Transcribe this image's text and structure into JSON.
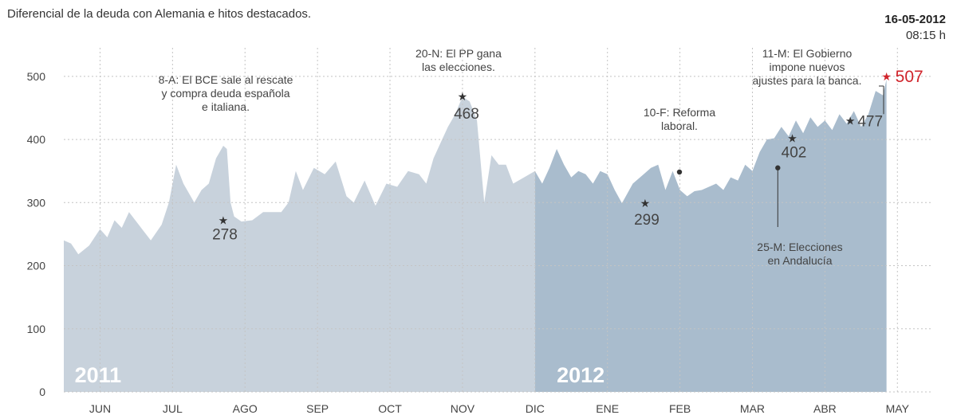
{
  "header": {
    "title": "Diferencial de la deuda con Alemania e hitos destacados.",
    "date": "16-05-2012",
    "time": "08:15 h"
  },
  "colors": {
    "area_2011": "#c8d2dc",
    "area_2012": "#a9bccd",
    "grid": "#c4c4c4",
    "text": "#444444",
    "highlight": "#d0242b",
    "marker": "#333333",
    "year_label": "#ffffff"
  },
  "chart_data": {
    "type": "area",
    "title": "Diferencial de la deuda con Alemania e hitos destacados.",
    "xlabel": "",
    "ylabel": "",
    "ylim": [
      0,
      520
    ],
    "yticks": [
      0,
      100,
      200,
      300,
      400,
      500
    ],
    "grid": true,
    "x_unit": "months since 1 June 2011",
    "months": [
      "JUN",
      "JUL",
      "AGO",
      "SEP",
      "OCT",
      "NOV",
      "DIC",
      "ENE",
      "FEB",
      "MAR",
      "ABR",
      "MAY"
    ],
    "year_labels": [
      {
        "text": "2011",
        "x": 0.15
      },
      {
        "text": "2012",
        "x": 6.8
      }
    ],
    "year_split": 6.5,
    "series": [
      {
        "name": "",
        "x": [
          0,
          0.1,
          0.2,
          0.35,
          0.5,
          0.6,
          0.7,
          0.8,
          0.9,
          1.0,
          1.1,
          1.2,
          1.35,
          1.45,
          1.55,
          1.65,
          1.8,
          1.9,
          2.0,
          2.1,
          2.2,
          2.25,
          2.3,
          2.35,
          2.45,
          2.6,
          2.75,
          2.9,
          3.0,
          3.1,
          3.2,
          3.3,
          3.45,
          3.6,
          3.75,
          3.9,
          4.0,
          4.15,
          4.3,
          4.45,
          4.6,
          4.75,
          4.9,
          5.0,
          5.1,
          5.2,
          5.3,
          5.4,
          5.5,
          5.6,
          5.7,
          5.8,
          5.9,
          6.0,
          6.1,
          6.2,
          6.35,
          6.5,
          6.6,
          6.7,
          6.8,
          6.9,
          7.0,
          7.1,
          7.2,
          7.3,
          7.4,
          7.5,
          7.6,
          7.7,
          7.85,
          8.0,
          8.1,
          8.2,
          8.3,
          8.4,
          8.5,
          8.6,
          8.7,
          8.8,
          8.9,
          9.0,
          9.1,
          9.2,
          9.3,
          9.4,
          9.5,
          9.6,
          9.7,
          9.8,
          9.9,
          10.0,
          10.1,
          10.2,
          10.3,
          10.4,
          10.5,
          10.6,
          10.7,
          10.8,
          10.9,
          11.0,
          11.1,
          11.2,
          11.3,
          11.35
        ],
        "values": [
          240,
          235,
          218,
          232,
          258,
          245,
          272,
          260,
          285,
          270,
          255,
          240,
          265,
          300,
          360,
          330,
          300,
          320,
          330,
          370,
          390,
          385,
          300,
          278,
          270,
          272,
          285,
          285,
          285,
          300,
          350,
          320,
          355,
          345,
          365,
          310,
          300,
          335,
          295,
          330,
          325,
          350,
          345,
          330,
          370,
          395,
          420,
          440,
          468,
          460,
          430,
          300,
          375,
          360,
          360,
          330,
          340,
          350,
          330,
          355,
          385,
          360,
          340,
          350,
          345,
          330,
          350,
          345,
          320,
          299,
          330,
          345,
          355,
          360,
          320,
          350,
          320,
          310,
          318,
          320,
          325,
          330,
          320,
          340,
          335,
          360,
          350,
          380,
          400,
          402,
          420,
          405,
          430,
          410,
          435,
          420,
          430,
          415,
          440,
          425,
          445,
          420,
          440,
          477,
          470,
          495
        ]
      }
    ],
    "annotations": [
      {
        "text": "8-A: El BCE sale al rescate",
        "text2": "y compra deuda española",
        "text3": "e italiana.",
        "value_label": "278",
        "x": 2.2,
        "y": 272
      },
      {
        "text": "20-N: El PP gana",
        "text2": "las elecciones.",
        "value_label": "468",
        "x": 5.5,
        "y": 468
      },
      {
        "text": "10-F: Reforma",
        "text2": "laboral.",
        "value_label": "299",
        "x": 8.02,
        "y": 299
      },
      {
        "text": "25-M: Elecciones",
        "text2": "en Andalucía",
        "x": 9.85,
        "y": 355
      },
      {
        "text": "11-M: El Gobierno",
        "text2": "impone nuevos",
        "text3": "ajustes para la banca.",
        "value_label": "477",
        "x": 10.85,
        "y": 430
      },
      {
        "value_label": "402",
        "x": 10.05,
        "y": 402
      },
      {
        "value_label": "507",
        "x": 11.35,
        "y": 500
      }
    ]
  }
}
